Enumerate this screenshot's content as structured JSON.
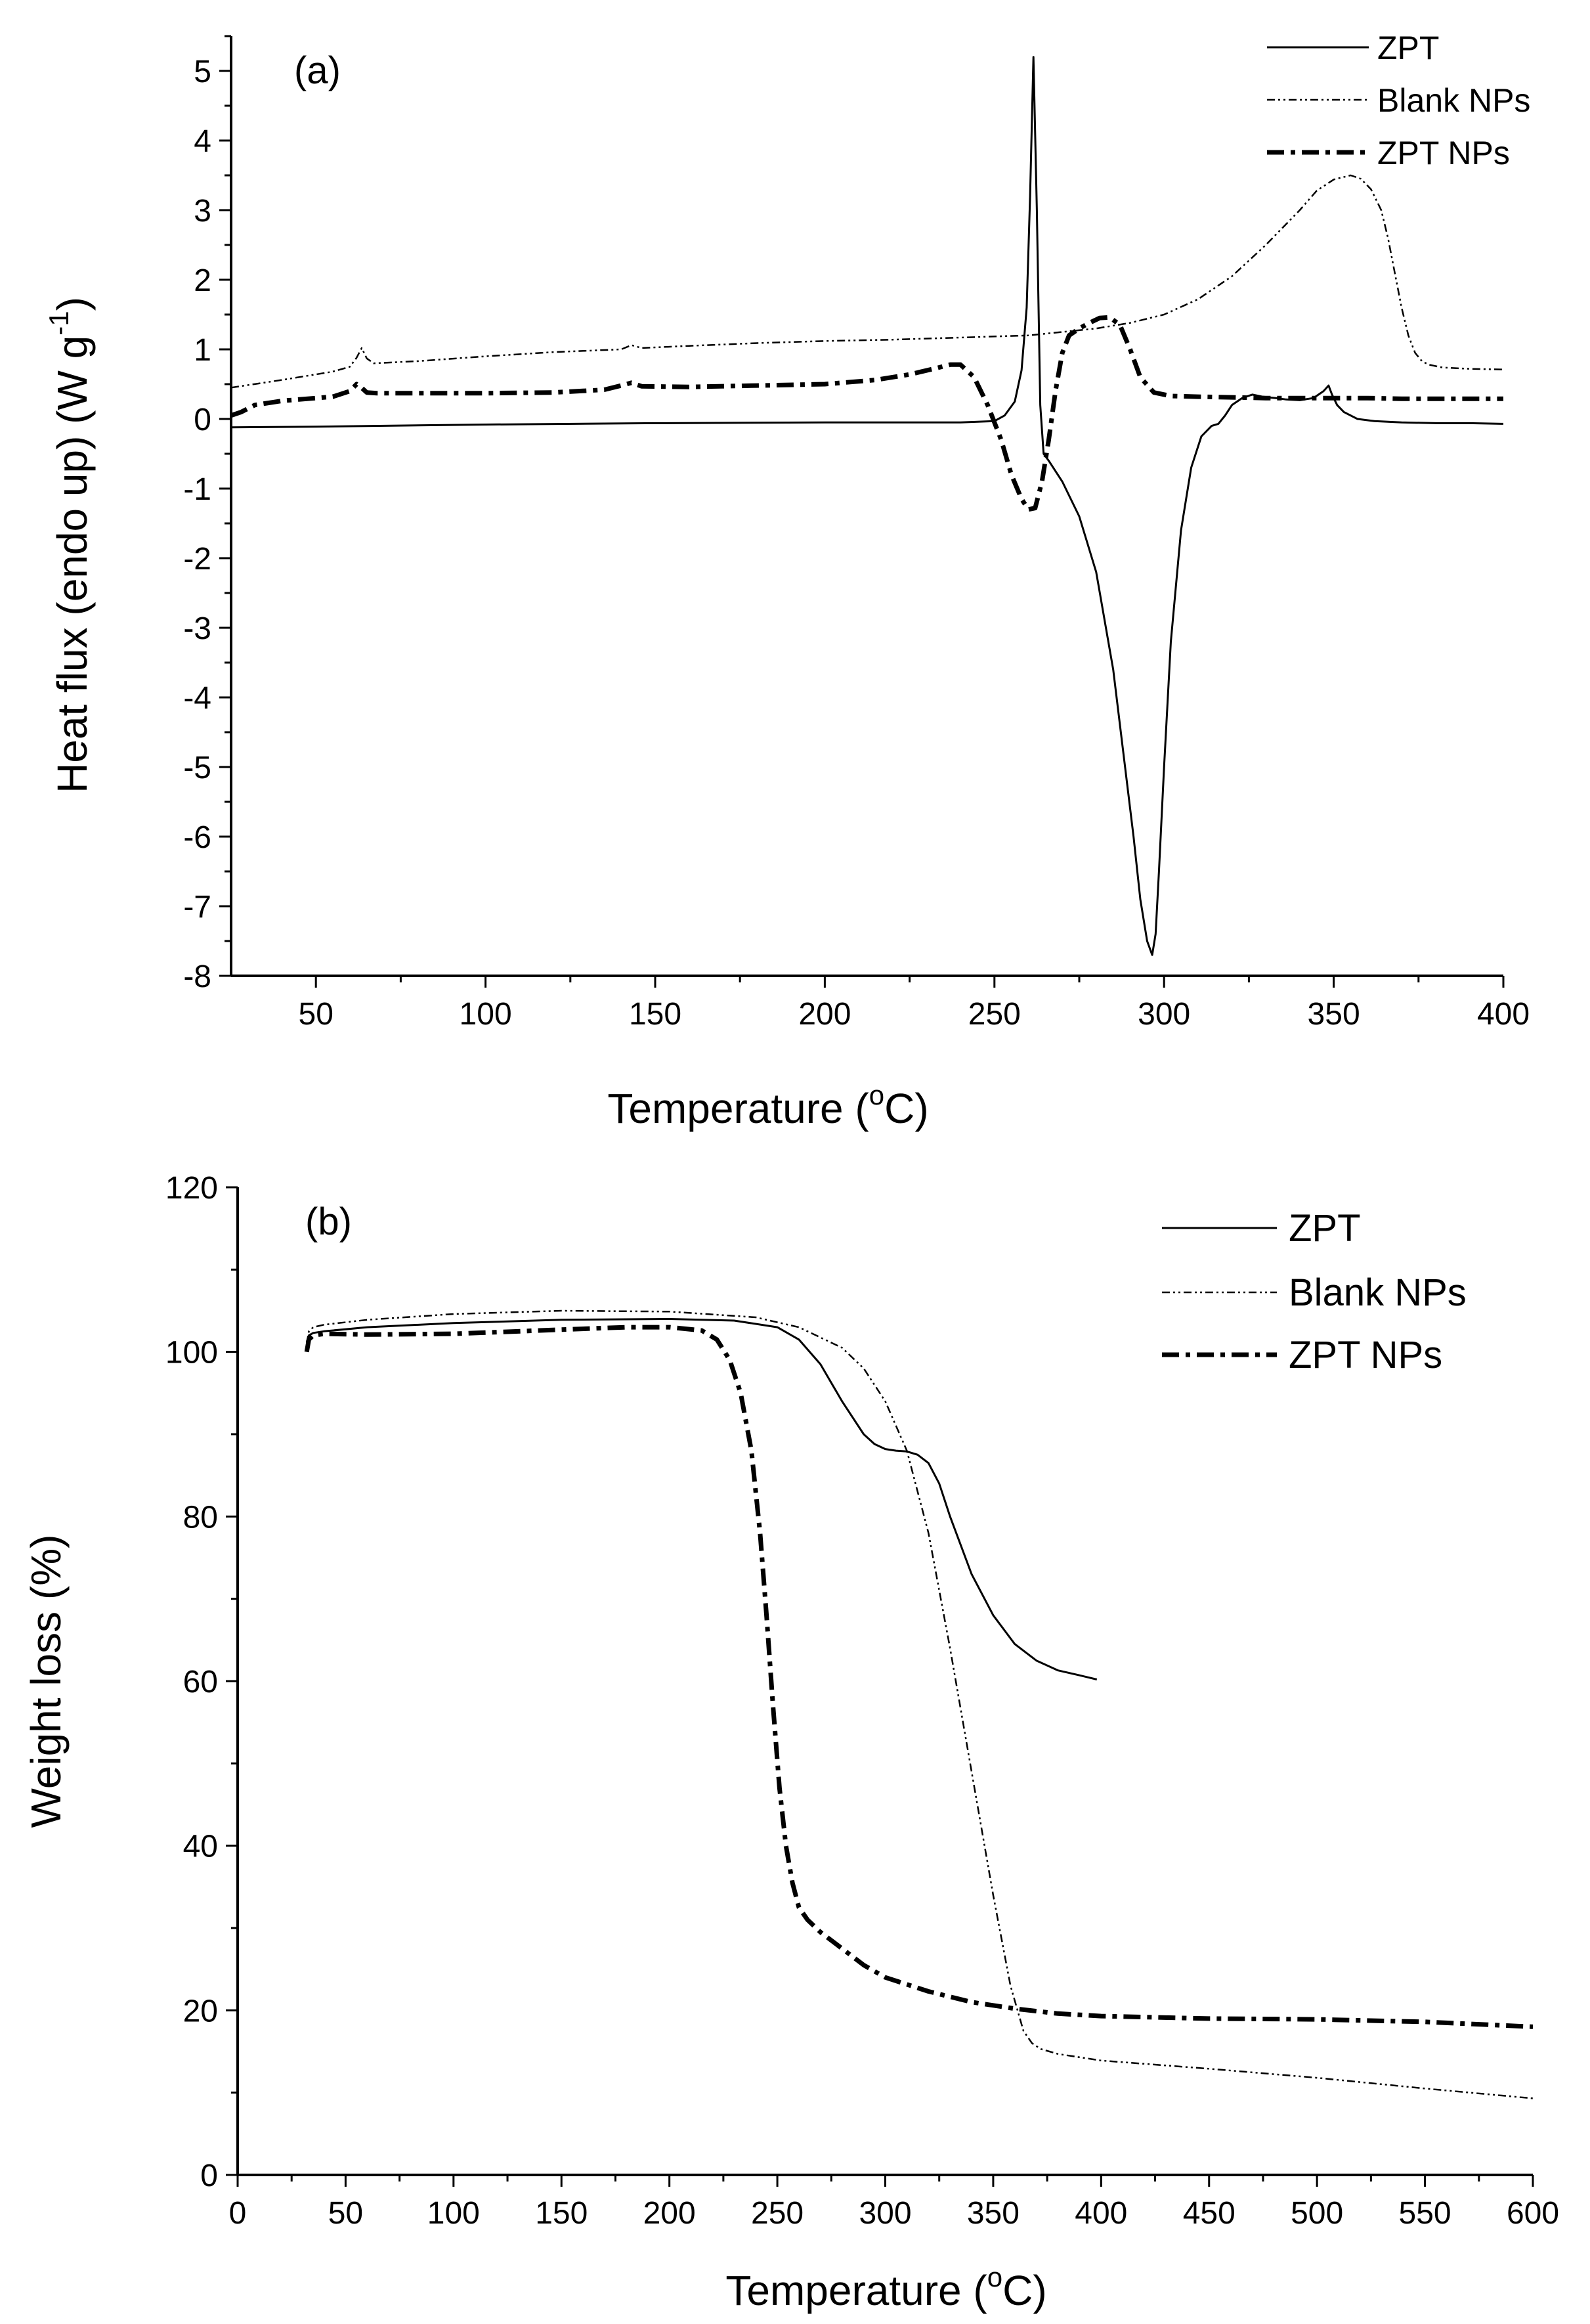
{
  "colors": {
    "line": "#000000",
    "background": "#ffffff"
  },
  "chart_data": [
    {
      "type": "line",
      "panel_label": "(a)",
      "xlabel": "Temperature (",
      "xlabel_sup": "o",
      "xlabel_end": "C)",
      "ylabel": "Heat flux (endo up) (W g",
      "ylabel_sup": "-1",
      "ylabel_end": ")",
      "xlim": [
        25,
        400
      ],
      "ylim": [
        -8,
        5.5
      ],
      "xticks": [
        50,
        100,
        150,
        200,
        250,
        300,
        350,
        400
      ],
      "xtick_labels": [
        "50",
        "100",
        "150",
        "200",
        "250",
        "300",
        "350",
        "400"
      ],
      "yticks": [
        -8,
        -7,
        -6,
        -5,
        -4,
        -3,
        -2,
        -1,
        0,
        1,
        2,
        3,
        4,
        5
      ],
      "ytick_labels": [
        "-8",
        "-7",
        "-6",
        "-5",
        "-4",
        "-3",
        "-2",
        "-1",
        "0",
        "1",
        "2",
        "3",
        "4",
        "5"
      ],
      "legend_position": "top-right",
      "series": [
        {
          "name": "ZPT",
          "style": "solid",
          "x": [
            25,
            50,
            100,
            150,
            200,
            240,
            250,
            253,
            256,
            258,
            259.5,
            260.5,
            261.5,
            262.5,
            263.5,
            264.5,
            266,
            270,
            275,
            280,
            285,
            288,
            291,
            293,
            295,
            296.5,
            297.5,
            298.5,
            300,
            302,
            305,
            308,
            311,
            314,
            316,
            318,
            320,
            323,
            326,
            329,
            333,
            336,
            340,
            344,
            347,
            348.5,
            349.5,
            351,
            353,
            357,
            362,
            370,
            380,
            390,
            400
          ],
          "y": [
            -0.12,
            -0.11,
            -0.08,
            -0.06,
            -0.05,
            -0.05,
            -0.03,
            0.05,
            0.25,
            0.7,
            1.6,
            3.2,
            5.2,
            3.0,
            0.2,
            -0.5,
            -0.6,
            -0.9,
            -1.4,
            -2.2,
            -3.6,
            -4.8,
            -6.0,
            -6.9,
            -7.5,
            -7.7,
            -7.4,
            -6.5,
            -5.0,
            -3.2,
            -1.6,
            -0.7,
            -0.25,
            -0.1,
            -0.07,
            0.05,
            0.2,
            0.3,
            0.35,
            0.32,
            0.3,
            0.28,
            0.27,
            0.3,
            0.4,
            0.48,
            0.35,
            0.2,
            0.1,
            0.0,
            -0.03,
            -0.05,
            -0.06,
            -0.06,
            -0.07
          ]
        },
        {
          "name": "Blank NPs",
          "style": "dash-dot-dot",
          "x": [
            25,
            40,
            55,
            60,
            62,
            63.5,
            65,
            67,
            80,
            100,
            120,
            140,
            143,
            146,
            160,
            180,
            200,
            220,
            240,
            260,
            280,
            290,
            300,
            310,
            320,
            330,
            340,
            345,
            350,
            355,
            358,
            361,
            364,
            366,
            368,
            370,
            372,
            374,
            376,
            378,
            382,
            390,
            400
          ],
          "y": [
            0.45,
            0.56,
            0.68,
            0.75,
            0.88,
            1.02,
            0.87,
            0.8,
            0.83,
            0.9,
            0.96,
            1.0,
            1.06,
            1.02,
            1.05,
            1.09,
            1.12,
            1.14,
            1.17,
            1.2,
            1.3,
            1.38,
            1.5,
            1.72,
            2.05,
            2.5,
            3.0,
            3.28,
            3.44,
            3.5,
            3.45,
            3.3,
            3.0,
            2.6,
            2.1,
            1.6,
            1.2,
            0.95,
            0.83,
            0.78,
            0.74,
            0.72,
            0.71
          ]
        },
        {
          "name": "ZPT NPs",
          "style": "dash-dot",
          "x": [
            25,
            28,
            32,
            40,
            55,
            60,
            62,
            63,
            65,
            68,
            80,
            100,
            120,
            135,
            140,
            143,
            146,
            160,
            180,
            200,
            215,
            225,
            232,
            237,
            240,
            244,
            248,
            252,
            255,
            258,
            260,
            262,
            264,
            266,
            268,
            270,
            272,
            275,
            278,
            281,
            284,
            287,
            290,
            293,
            297,
            302,
            310,
            320,
            330,
            340,
            350,
            360,
            370,
            380,
            390,
            400
          ],
          "y": [
            0.05,
            0.1,
            0.2,
            0.26,
            0.32,
            0.4,
            0.5,
            0.47,
            0.38,
            0.37,
            0.37,
            0.37,
            0.38,
            0.42,
            0.48,
            0.52,
            0.47,
            0.46,
            0.48,
            0.5,
            0.56,
            0.64,
            0.72,
            0.78,
            0.78,
            0.6,
            0.2,
            -0.3,
            -0.8,
            -1.15,
            -1.3,
            -1.28,
            -0.9,
            -0.3,
            0.4,
            0.95,
            1.2,
            1.3,
            1.38,
            1.45,
            1.46,
            1.35,
            1.0,
            0.6,
            0.38,
            0.33,
            0.32,
            0.31,
            0.3,
            0.3,
            0.3,
            0.3,
            0.29,
            0.29,
            0.29,
            0.29
          ]
        }
      ]
    },
    {
      "type": "line",
      "panel_label": "(b)",
      "xlabel": "Temperature (",
      "xlabel_sup": "o",
      "xlabel_end": "C)",
      "ylabel": "Weight loss (%)",
      "xlim": [
        0,
        600
      ],
      "ylim": [
        0,
        120
      ],
      "xticks": [
        0,
        50,
        100,
        150,
        200,
        250,
        300,
        350,
        400,
        450,
        500,
        550,
        600
      ],
      "xtick_labels": [
        "0",
        "50",
        "100",
        "150",
        "200",
        "250",
        "300",
        "350",
        "400",
        "450",
        "500",
        "550",
        "600"
      ],
      "yticks": [
        0,
        20,
        40,
        60,
        80,
        100,
        120
      ],
      "ytick_labels": [
        "0",
        "20",
        "40",
        "60",
        "80",
        "100",
        "120"
      ],
      "legend_position": "top-right",
      "series": [
        {
          "name": "ZPT",
          "style": "solid",
          "x": [
            32,
            33,
            35,
            40,
            60,
            100,
            150,
            200,
            230,
            250,
            260,
            270,
            280,
            290,
            295,
            300,
            305,
            310,
            315,
            320,
            325,
            330,
            340,
            350,
            360,
            370,
            380,
            390,
            398
          ],
          "y": [
            101.2,
            102.0,
            102.3,
            102.5,
            103.0,
            103.5,
            103.9,
            104.0,
            103.8,
            103.0,
            101.5,
            98.5,
            94.0,
            90.0,
            88.8,
            88.2,
            88.0,
            87.9,
            87.5,
            86.5,
            84.0,
            80.0,
            73.0,
            68.0,
            64.5,
            62.5,
            61.3,
            60.7,
            60.2
          ]
        },
        {
          "name": "Blank NPs",
          "style": "dash-dot-dot",
          "x": [
            32,
            33,
            35,
            40,
            60,
            100,
            150,
            200,
            240,
            260,
            280,
            290,
            300,
            310,
            320,
            330,
            340,
            350,
            358,
            364,
            368,
            372,
            380,
            400,
            450,
            500,
            550,
            600
          ],
          "y": [
            101.0,
            102.5,
            103.0,
            103.3,
            103.9,
            104.6,
            105.0,
            104.9,
            104.2,
            103.0,
            100.5,
            98.0,
            94.0,
            88.0,
            78.0,
            64.0,
            49.0,
            34.0,
            23.0,
            17.5,
            16.0,
            15.3,
            14.7,
            13.9,
            12.9,
            11.8,
            10.5,
            9.3
          ]
        },
        {
          "name": "ZPT NPs",
          "style": "dash-dot",
          "x": [
            32,
            33,
            35,
            40,
            60,
            100,
            150,
            180,
            200,
            215,
            222,
            228,
            233,
            238,
            242,
            245,
            248,
            251,
            254,
            257,
            260,
            264,
            270,
            280,
            290,
            300,
            320,
            340,
            360,
            380,
            400,
            450,
            500,
            550,
            600
          ],
          "y": [
            100.0,
            101.5,
            102.0,
            102.2,
            102.1,
            102.2,
            102.7,
            103.0,
            103.0,
            102.6,
            101.5,
            99.0,
            95.0,
            88.0,
            78.0,
            68.0,
            57.0,
            47.0,
            40.0,
            35.5,
            32.5,
            31.0,
            29.5,
            27.5,
            25.5,
            24.0,
            22.3,
            21.0,
            20.2,
            19.6,
            19.3,
            19.0,
            18.9,
            18.6,
            18.0
          ]
        }
      ]
    }
  ]
}
